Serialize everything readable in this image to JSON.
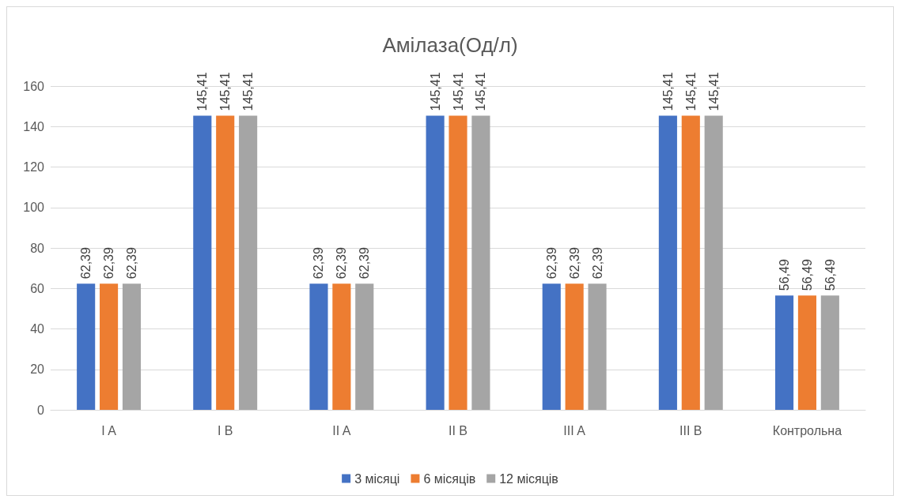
{
  "chart_data": {
    "type": "bar",
    "title": "Амілаза(Од/л)",
    "categories": [
      "I A",
      "I B",
      "II A",
      "II B",
      "III A",
      "III B",
      "Контрольна"
    ],
    "series": [
      {
        "name": "3 місяці",
        "color": "#4472c4",
        "values": [
          62.39,
          145.41,
          62.39,
          145.41,
          62.39,
          145.41,
          56.49
        ],
        "value_labels": [
          "62,39",
          "145,41",
          "62,39",
          "145,41",
          "62,39",
          "145,41",
          "56,49"
        ]
      },
      {
        "name": "6 місяців",
        "color": "#ed7d31",
        "values": [
          62.39,
          145.41,
          62.39,
          145.41,
          62.39,
          145.41,
          56.49
        ],
        "value_labels": [
          "62,39",
          "145,41",
          "62,39",
          "145,41",
          "62,39",
          "145,41",
          "56,49"
        ]
      },
      {
        "name": "12 місяців",
        "color": "#a5a5a5",
        "values": [
          62.39,
          145.41,
          62.39,
          145.41,
          62.39,
          145.41,
          56.49
        ],
        "value_labels": [
          "62,39",
          "145,41",
          "62,39",
          "145,41",
          "62,39",
          "145,41",
          "56,49"
        ]
      }
    ],
    "ylim": [
      0,
      160
    ],
    "yticks": [
      0,
      20,
      40,
      60,
      80,
      100,
      120,
      140,
      160
    ],
    "grid": "y",
    "legend": "bottom"
  }
}
